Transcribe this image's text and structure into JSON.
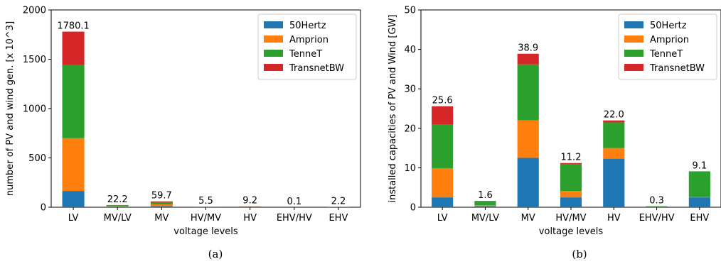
{
  "colors": {
    "50Hertz": "#1f77b4",
    "Amprion": "#ff7f0e",
    "TenneT": "#2ca02c",
    "TransnetBW": "#d62728"
  },
  "chart_data": [
    {
      "type": "bar",
      "stacked": true,
      "caption": "(a)",
      "xlabel": "voltage levels",
      "ylabel": "number of PV and wind gen. [x 10^3]",
      "ylim": [
        0,
        2000
      ],
      "yticks": [
        0,
        500,
        1000,
        1500,
        2000
      ],
      "categories": [
        "LV",
        "MV/LV",
        "MV",
        "HV/MV",
        "HV",
        "EHV/HV",
        "EHV"
      ],
      "totals_labels": [
        "1780.1",
        "22.2",
        "59.7",
        "5.5",
        "9.2",
        "0.1",
        "2.2"
      ],
      "legend_position": "top-right",
      "series": [
        {
          "name": "50Hertz",
          "values": [
            165,
            4,
            12,
            1.5,
            2.5,
            0.03,
            0.7
          ]
        },
        {
          "name": "Amprion",
          "values": [
            535,
            5,
            17,
            1.5,
            2.5,
            0.03,
            0.5
          ]
        },
        {
          "name": "TenneT",
          "values": [
            740,
            10,
            23,
            2,
            3,
            0.03,
            0.8
          ]
        },
        {
          "name": "TransnetBW",
          "values": [
            340.1,
            3.2,
            7.7,
            0.5,
            1.2,
            0.01,
            0.2
          ]
        }
      ]
    },
    {
      "type": "bar",
      "stacked": true,
      "caption": "(b)",
      "xlabel": "voltage levels",
      "ylabel": "installed capacities of PV and Wind [GW]",
      "ylim": [
        0,
        50
      ],
      "yticks": [
        0,
        10,
        20,
        30,
        40,
        50
      ],
      "categories": [
        "LV",
        "MV/LV",
        "MV",
        "HV/MV",
        "HV",
        "EHV/HV",
        "EHV"
      ],
      "totals_labels": [
        "25.6",
        "1.6",
        "38.9",
        "11.2",
        "22.0",
        "0.3",
        "9.1"
      ],
      "legend_position": "top-right",
      "series": [
        {
          "name": "50Hertz",
          "values": [
            2.5,
            0.3,
            12.5,
            2.5,
            12.3,
            0.1,
            2.5
          ]
        },
        {
          "name": "Amprion",
          "values": [
            7.4,
            0.2,
            9.5,
            1.6,
            2.7,
            0.1,
            0.1
          ]
        },
        {
          "name": "TenneT",
          "values": [
            11.0,
            1.0,
            14.2,
            6.8,
            6.5,
            0.1,
            6.5
          ]
        },
        {
          "name": "TransnetBW",
          "values": [
            4.7,
            0.1,
            2.7,
            0.3,
            0.5,
            0.0,
            0.0
          ]
        }
      ]
    }
  ]
}
